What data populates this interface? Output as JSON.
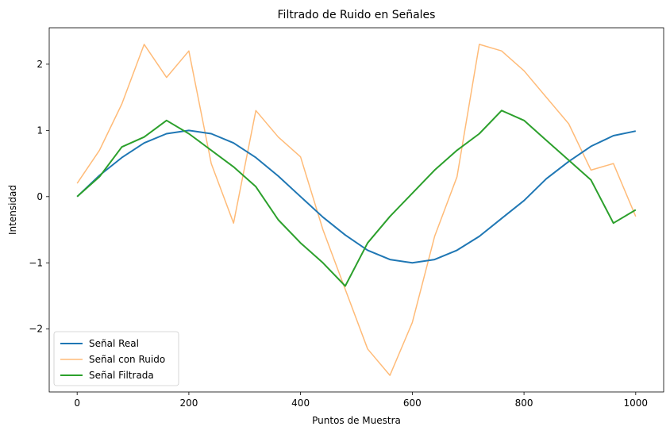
{
  "chart_data": {
    "type": "line",
    "title": "Filtrado de Ruido en Señales",
    "xlabel": "Puntos de Muestra",
    "ylabel": "Intensidad",
    "xlim": [
      -50,
      1050
    ],
    "ylim": [
      -2.95,
      2.55
    ],
    "xticks": [
      0,
      200,
      400,
      600,
      800,
      1000
    ],
    "yticks": [
      -2,
      -1,
      0,
      1,
      2
    ],
    "xtick_labels": [
      "0",
      "200",
      "400",
      "600",
      "800",
      "1000"
    ],
    "ytick_labels": [
      "−2",
      "−1",
      "0",
      "1",
      "2"
    ],
    "grid": false,
    "legend_position": "lower-left",
    "series": [
      {
        "name": "Señal Real",
        "color": "#1f77b4",
        "x": [
          0,
          40,
          80,
          120,
          160,
          200,
          240,
          280,
          320,
          360,
          400,
          440,
          480,
          520,
          560,
          600,
          640,
          680,
          720,
          760,
          800,
          840,
          880,
          920,
          960,
          1000
        ],
        "values": [
          0,
          0.32,
          0.59,
          0.81,
          0.95,
          1.0,
          0.95,
          0.81,
          0.59,
          0.31,
          0.0,
          -0.31,
          -0.58,
          -0.81,
          -0.95,
          -1.0,
          -0.95,
          -0.81,
          -0.6,
          -0.33,
          -0.06,
          0.27,
          0.53,
          0.76,
          0.92,
          0.99
        ]
      },
      {
        "name": "Señal con Ruido",
        "color": "#ffbb78",
        "x": [
          0,
          40,
          80,
          120,
          160,
          200,
          240,
          280,
          320,
          360,
          400,
          440,
          480,
          520,
          560,
          600,
          640,
          680,
          720,
          760,
          800,
          840,
          880,
          920,
          960,
          1000
        ],
        "values": [
          0.2,
          0.7,
          1.4,
          2.3,
          1.8,
          2.2,
          0.5,
          -0.4,
          1.3,
          0.9,
          0.6,
          -0.5,
          -1.4,
          -2.3,
          -2.7,
          -1.9,
          -0.6,
          0.3,
          2.3,
          2.2,
          1.9,
          1.5,
          1.1,
          0.4,
          0.5,
          -0.3
        ]
      },
      {
        "name": "Señal Filtrada",
        "color": "#2ca02c",
        "x": [
          0,
          40,
          80,
          120,
          160,
          200,
          240,
          280,
          320,
          360,
          400,
          440,
          480,
          520,
          560,
          600,
          640,
          680,
          720,
          760,
          800,
          840,
          880,
          920,
          960,
          1000
        ],
        "values": [
          0.0,
          0.3,
          0.75,
          0.9,
          1.15,
          0.95,
          0.7,
          0.45,
          0.15,
          -0.35,
          -0.7,
          -1.0,
          -1.35,
          -0.7,
          -0.3,
          0.05,
          0.4,
          0.7,
          0.95,
          1.3,
          1.15,
          0.85,
          0.55,
          0.25,
          -0.4,
          -0.2
        ]
      }
    ]
  }
}
